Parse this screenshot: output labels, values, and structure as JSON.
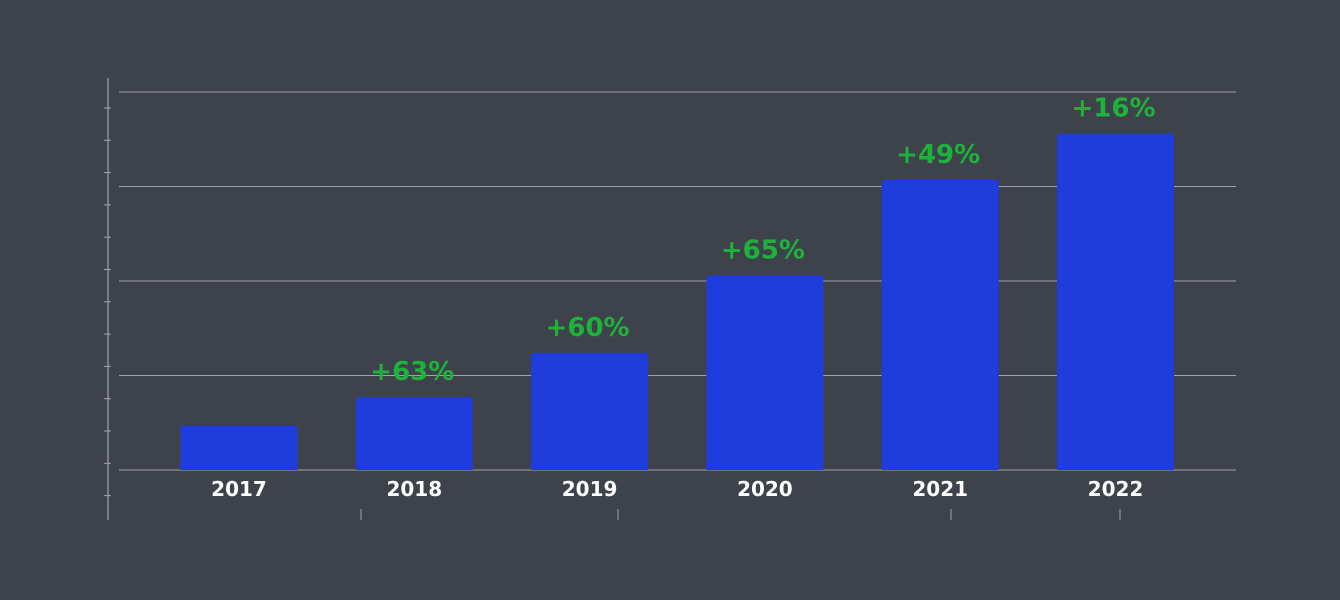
{
  "colors": {
    "background": "#3e424b",
    "bar": "#1f3ddc",
    "growth_label": "#1db33a",
    "grid": "#a0a3ab",
    "axis_text": "#ffffff"
  },
  "chart_data": {
    "type": "bar",
    "title": "",
    "xlabel": "",
    "ylabel": "",
    "categories": [
      "2017",
      "2018",
      "2019",
      "2020",
      "2021",
      "2022"
    ],
    "values": [
      47,
      77,
      124,
      206,
      307,
      356
    ],
    "annotations": [
      "",
      "+63%",
      "+60%",
      "+65%",
      "+49%",
      "+16%"
    ],
    "ylim": [
      0,
      400
    ],
    "yticks": [
      0,
      100,
      200,
      300,
      400
    ],
    "grid": true,
    "y_tick_labels_visible": false,
    "legend": "none"
  }
}
